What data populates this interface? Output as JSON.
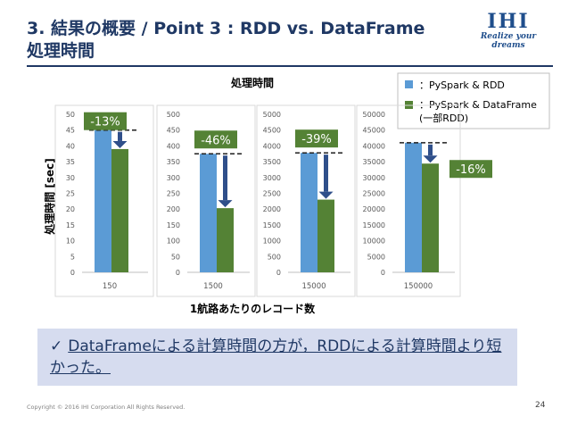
{
  "slide": {
    "title_line1": "3. 結果の概要 / Point 3 : RDD vs. DataFrame",
    "title_line2": "処理時間",
    "logo_mark": "IHI",
    "logo_tagline": "Realize your dreams",
    "conclusion_check": "✓",
    "conclusion_text": "DataFrameによる計算時間の方が，RDDによる計算時間より短かった。",
    "footer": "Copyright © 2016 IHI Corporation All Rights Reserved.",
    "page_number": "24"
  },
  "colors": {
    "rdd": "#5b9bd5",
    "dataframe": "#548235",
    "arrow": "#2f4f8a",
    "label_bg": "#548235"
  },
  "chart_data": {
    "type": "bar",
    "title": "処理時間",
    "ylabel": "処理時間 [sec]",
    "xlabel": "1航路あたりのレコード数",
    "legend_position": "top-right",
    "legend": [
      {
        "series": "rdd",
        "label": "：PySpark & RDD"
      },
      {
        "series": "dataframe",
        "label": "：PySpark & DataFrame (一部RDD)"
      }
    ],
    "panels": [
      {
        "category": "150",
        "ylim": [
          0,
          50
        ],
        "ticks": [
          "0",
          "5",
          "10",
          "15",
          "20",
          "25",
          "30",
          "35",
          "40",
          "45",
          "50"
        ],
        "rdd": 45,
        "dataframe": 39,
        "change": "-13%"
      },
      {
        "category": "1500",
        "ylim": [
          0,
          500
        ],
        "ticks": [
          "0",
          "50",
          "100",
          "150",
          "200",
          "250",
          "300",
          "350",
          "400",
          "450",
          "500"
        ],
        "rdd": 375,
        "dataframe": 203,
        "change": "-46%"
      },
      {
        "category": "15000",
        "ylim": [
          0,
          5000
        ],
        "ticks": [
          "0",
          "500",
          "1000",
          "1500",
          "2000",
          "2500",
          "3000",
          "3500",
          "4000",
          "4500",
          "5000"
        ],
        "rdd": 3780,
        "dataframe": 2300,
        "change": "-39%"
      },
      {
        "category": "150000",
        "ylim": [
          0,
          50000
        ],
        "ticks": [
          "0",
          "5000",
          "10000",
          "15000",
          "20000",
          "25000",
          "30000",
          "35000",
          "40000",
          "45000",
          "50000"
        ],
        "rdd": 41000,
        "dataframe": 34400,
        "change": "-16%"
      }
    ]
  }
}
